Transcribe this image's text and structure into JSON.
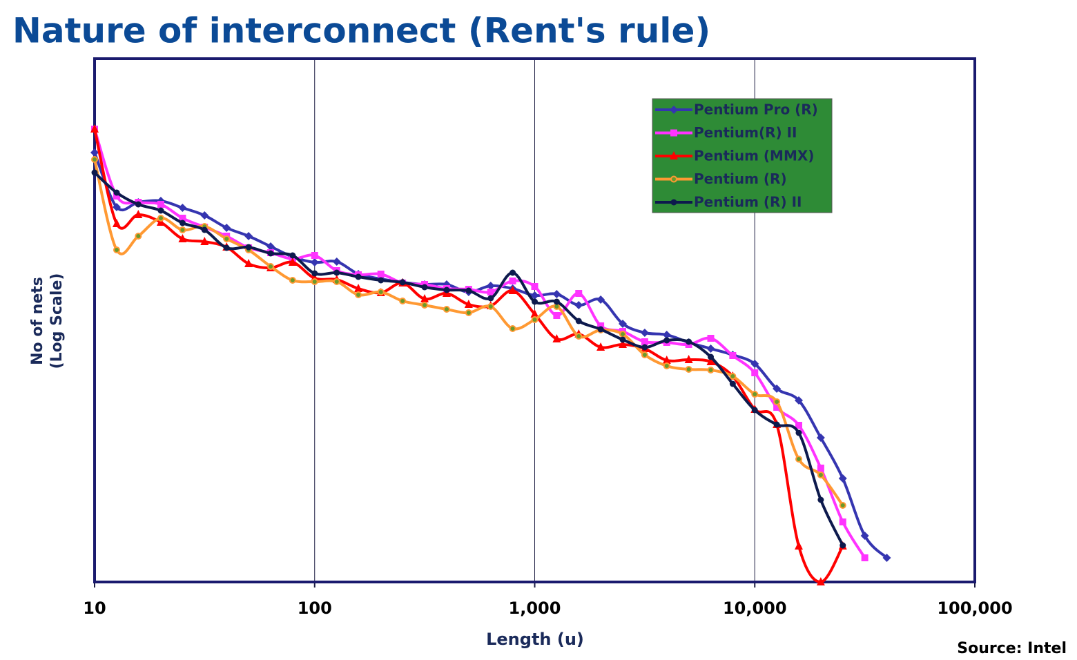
{
  "chart_data": {
    "type": "line",
    "title": "Nature of interconnect (Rent's rule)",
    "x_label": "Length (u)",
    "y_label": [
      "No of nets",
      "(Log Scale)"
    ],
    "source": "Source: Intel",
    "xlog": true,
    "xlim": [
      10,
      100000
    ],
    "xticks": [
      10,
      100,
      {
        "value": 1000,
        "label": "1,000"
      },
      {
        "value": 10000,
        "label": "10,000"
      },
      {
        "value": 100000,
        "label": "100,000"
      }
    ],
    "ylim": [
      0,
      758
    ],
    "grid": true,
    "legend": "top-right",
    "x": [
      10,
      12.6,
      15.8,
      20,
      25.1,
      31.6,
      39.8,
      50.1,
      63.1,
      79.4,
      100,
      126,
      158,
      200,
      251,
      316,
      398,
      501,
      631,
      794,
      1000,
      1259,
      1585,
      1995,
      2512,
      3162,
      3981,
      5012,
      6310,
      7943,
      10000,
      12589,
      15849,
      19953,
      25119,
      31623,
      39811
    ],
    "series": [
      {
        "name": "Pentium Pro (R)",
        "color": "#3535b0",
        "marker": "diamond",
        "values": [
          622,
          543,
          550,
          552,
          542,
          531,
          513,
          501,
          486,
          471,
          463,
          464,
          446,
          439,
          434,
          431,
          431,
          420,
          429,
          425,
          415,
          417,
          401,
          409,
          374,
          361,
          358,
          347,
          338,
          329,
          316,
          280,
          263,
          209,
          150,
          67,
          35
        ]
      },
      {
        "name": "Pentium(R) II",
        "color": "#ff33ff",
        "marker": "square",
        "values": [
          656,
          559,
          550,
          547,
          527,
          514,
          501,
          484,
          477,
          468,
          473,
          451,
          445,
          446,
          433,
          431,
          425,
          424,
          420,
          436,
          428,
          386,
          418,
          371,
          363,
          348,
          347,
          344,
          353,
          328,
          303,
          253,
          227,
          165,
          87,
          35,
          null
        ]
      },
      {
        "name": "Pentium (MMX)",
        "color": "#ff0000",
        "marker": "triangle",
        "values": [
          656,
          519,
          532,
          521,
          497,
          493,
          485,
          461,
          455,
          463,
          440,
          438,
          425,
          419,
          433,
          410,
          418,
          402,
          400,
          422,
          388,
          352,
          359,
          340,
          344,
          338,
          321,
          322,
          319,
          298,
          250,
          228,
          52,
          0,
          52,
          null,
          null
        ]
      },
      {
        "name": "Pentium (R)",
        "color": "#ff9933",
        "marker": "circle-dot",
        "values": [
          612,
          481,
          501,
          527,
          510,
          515,
          497,
          481,
          457,
          437,
          435,
          435,
          416,
          420,
          407,
          401,
          395,
          390,
          399,
          367,
          380,
          399,
          356,
          365,
          359,
          329,
          313,
          308,
          307,
          298,
          272,
          261,
          178,
          155,
          111,
          null,
          null
        ]
      },
      {
        "name": "Pentium (R) II",
        "color": "#0d1a4d",
        "marker": "circle",
        "values": [
          593,
          564,
          547,
          538,
          520,
          510,
          484,
          485,
          476,
          473,
          447,
          448,
          442,
          437,
          434,
          427,
          423,
          422,
          411,
          448,
          406,
          406,
          378,
          366,
          351,
          340,
          350,
          348,
          326,
          287,
          249,
          228,
          216,
          119,
          53,
          null,
          null
        ]
      }
    ]
  }
}
